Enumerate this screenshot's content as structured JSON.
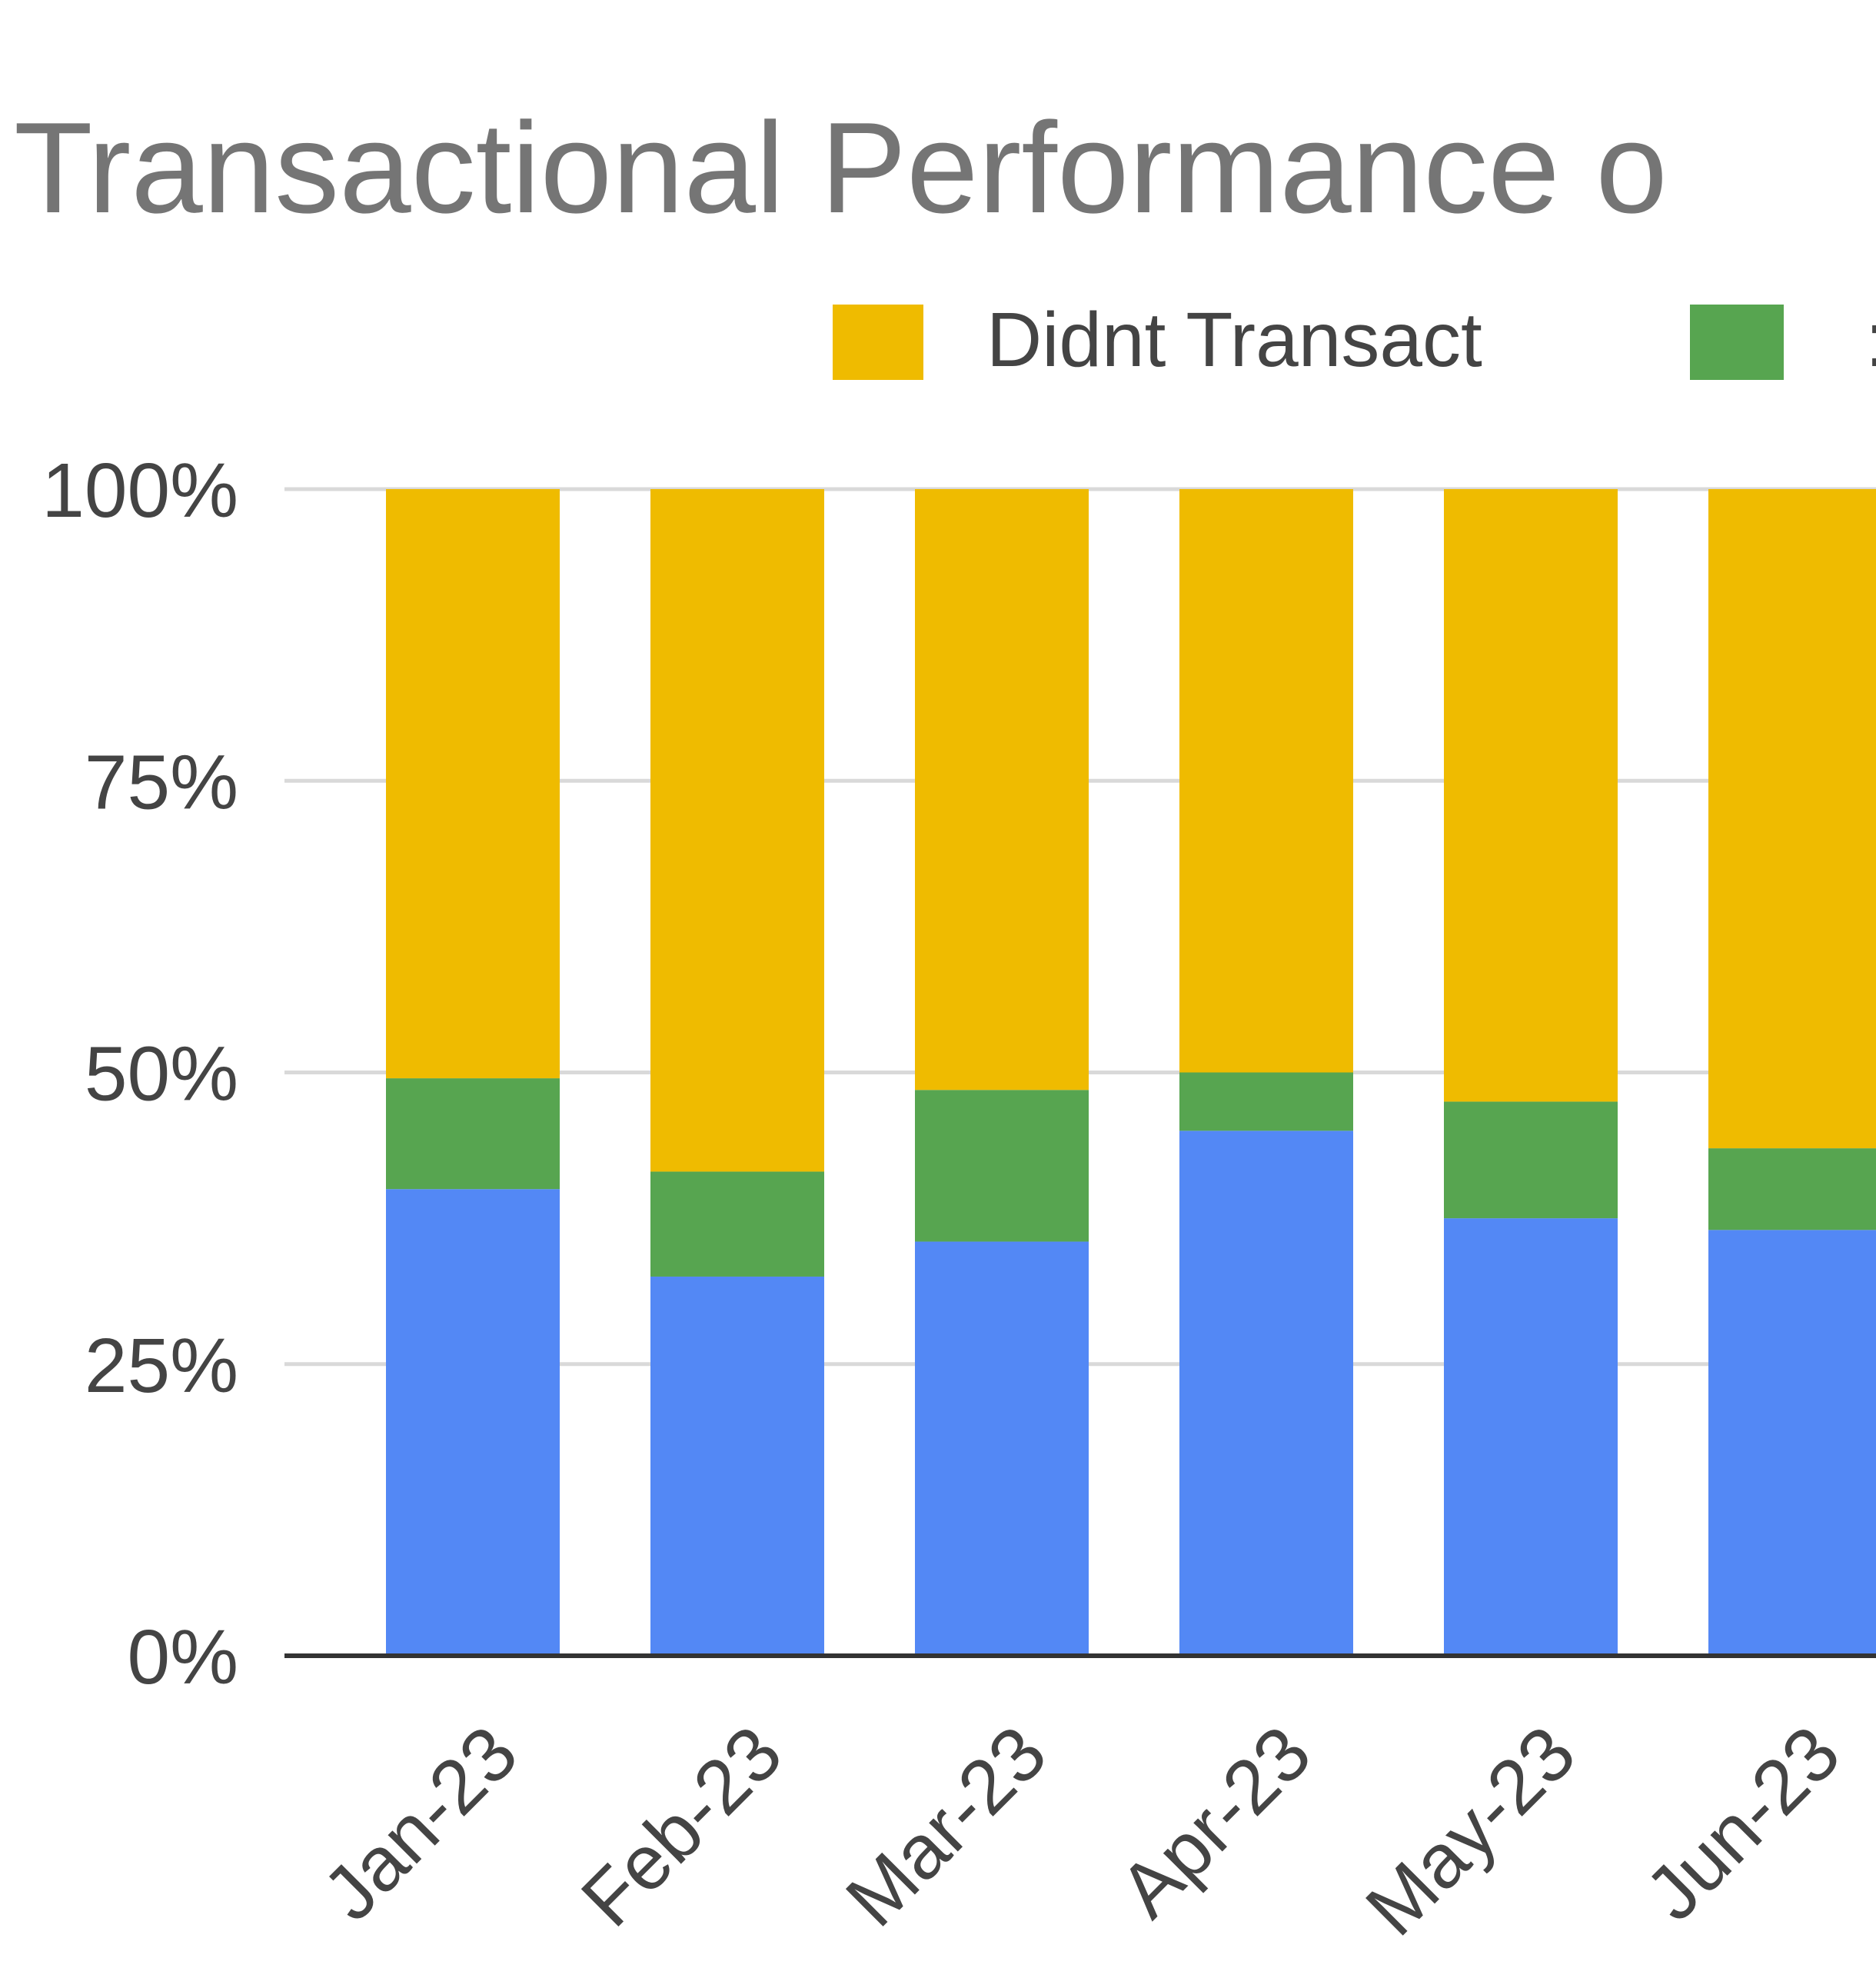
{
  "chart_data": {
    "type": "bar",
    "stacked": true,
    "percent_stacked": true,
    "title": "Transactional Performance o",
    "categories": [
      "Jan-23",
      "Feb-23",
      "Mar-23",
      "Apr-23",
      "May-23",
      "Jun-23"
    ],
    "series": [
      {
        "key": "blue",
        "values": [
          40,
          32.5,
          35.5,
          45,
          37.5,
          36.5
        ],
        "color": "#5388f5"
      },
      {
        "key": "green",
        "values": [
          9.5,
          9,
          13,
          5,
          10,
          7
        ],
        "color": "#57a550"
      },
      {
        "name": "Didnt Transact",
        "values": [
          50.5,
          58.5,
          51.5,
          50,
          52.5,
          56.5
        ],
        "color": "#efbb00"
      }
    ],
    "legend": {
      "placement": "top",
      "visible_entries": [
        "Didnt Transact"
      ],
      "partial_entry_glyph": ":"
    },
    "y_ticks": [
      "0%",
      "25%",
      "50%",
      "75%",
      "100%"
    ],
    "ylim": [
      0,
      100
    ],
    "grid": true
  }
}
